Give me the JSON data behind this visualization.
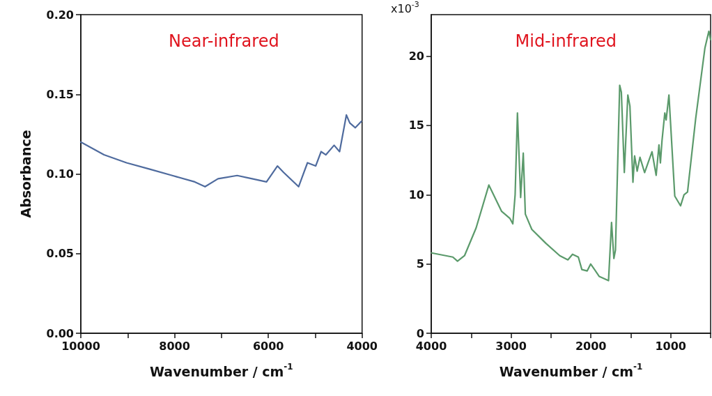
{
  "chart_data": [
    {
      "type": "line",
      "ylabel": "Absorbance",
      "xlabel": "Wavenumber / cm$^{-1}$",
      "annotations": [
        "Near-infrared"
      ],
      "marker": "none",
      "line_style": "solid",
      "xlim": [
        10000,
        4000
      ],
      "xticks": [
        10000,
        {
          "value": 9000,
          "label": null
        },
        8000,
        {
          "value": 7000,
          "label": null
        },
        6000,
        {
          "value": 5000,
          "label": null
        },
        4000
      ],
      "ylim": [
        0,
        0.2
      ],
      "yticks": [
        {
          "value": 0,
          "label": "0.00"
        },
        {
          "value": 0.05,
          "label": "0.05"
        },
        {
          "value": 0.1,
          "label": "0.10"
        },
        {
          "value": 0.15,
          "label": "0.15"
        },
        {
          "value": 0.2,
          "label": "0.20"
        }
      ],
      "series": [
        {
          "color": "#4f6b9e",
          "x": [
            10000,
            9505,
            9024,
            8530,
            8049,
            7568,
            7350,
            7073,
            6665,
            6345,
            6039,
            5806,
            5675,
            5354,
            5165,
            4990,
            4874,
            4772,
            4597,
            4480,
            4335,
            4262,
            4146,
            4015
          ],
          "values": [
            0.12,
            0.112,
            0.107,
            0.103,
            0.099,
            0.095,
            0.092,
            0.097,
            0.099,
            0.097,
            0.095,
            0.105,
            0.101,
            0.092,
            0.107,
            0.105,
            0.114,
            0.112,
            0.118,
            0.114,
            0.137,
            0.132,
            0.129,
            0.133
          ]
        }
      ]
    },
    {
      "type": "line",
      "xlabel": "Wavenumber / cm$^{-1}$",
      "annotations": [
        "Mid-infrared",
        "x10$^{-3}$"
      ],
      "marker": "none",
      "line_style": "solid",
      "xlim": [
        4000,
        500
      ],
      "xticks": [
        4000,
        {
          "value": 3500,
          "label": null
        },
        3000,
        {
          "value": 2500,
          "label": null
        },
        2000,
        {
          "value": 1500,
          "label": null
        },
        1000,
        {
          "value": 500,
          "label": null
        }
      ],
      "ylim": [
        0,
        23
      ],
      "yticks": [
        0,
        5,
        10,
        15,
        20
      ],
      "series": [
        {
          "color": "#5b9a6b",
          "x": [
            3997,
            3729,
            3671,
            3583,
            3438,
            3278,
            3118,
            3016,
            2978,
            2949,
            2920,
            2880,
            2847,
            2821,
            2740,
            2565,
            2390,
            2288,
            2230,
            2157,
            2113,
            2046,
            2003,
            1954,
            1895,
            1779,
            1741,
            1712,
            1692,
            1639,
            1618,
            1581,
            1537,
            1511,
            1473,
            1452,
            1420,
            1385,
            1327,
            1284,
            1234,
            1182,
            1147,
            1129,
            1109,
            1074,
            1057,
            1022,
            949,
            876,
            833,
            789,
            687,
            571,
            522,
            500
          ],
          "values": [
            5.8,
            5.5,
            5.2,
            5.6,
            7.6,
            10.7,
            8.8,
            8.3,
            7.9,
            10.0,
            15.9,
            9.8,
            13.0,
            8.6,
            7.5,
            6.5,
            5.6,
            5.3,
            5.7,
            5.5,
            4.6,
            4.5,
            5.0,
            4.6,
            4.1,
            3.8,
            8.0,
            5.4,
            6.0,
            17.9,
            17.4,
            11.6,
            17.2,
            16.4,
            10.9,
            12.8,
            11.7,
            12.7,
            11.6,
            12.3,
            13.1,
            11.4,
            13.6,
            12.3,
            13.9,
            15.9,
            15.4,
            17.2,
            9.9,
            9.2,
            10.0,
            10.2,
            15.5,
            20.6,
            21.8,
            21.2
          ]
        }
      ]
    }
  ]
}
